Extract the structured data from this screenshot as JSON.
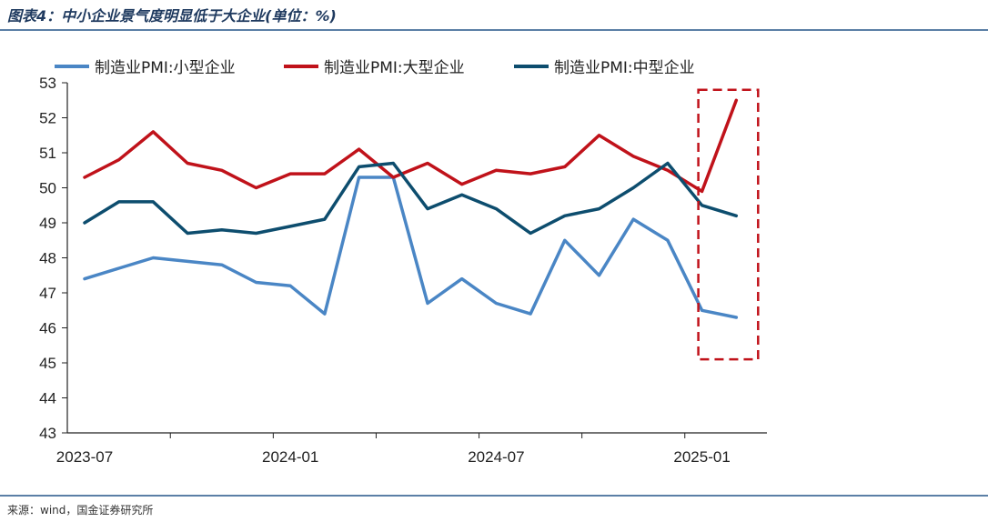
{
  "title": "图表4：中小企业景气度明显低于大企业(单位：%)",
  "source": "来源：wind，国金证券研究所",
  "chart_data": {
    "type": "line",
    "x": [
      "2023-07",
      "2023-08",
      "2023-09",
      "2023-10",
      "2023-11",
      "2023-12",
      "2024-01",
      "2024-02",
      "2024-03",
      "2024-04",
      "2024-05",
      "2024-06",
      "2024-07",
      "2024-08",
      "2024-09",
      "2024-10",
      "2024-11",
      "2024-12",
      "2025-01",
      "2025-02"
    ],
    "x_tick_labels": [
      "2023-07",
      "2024-01",
      "2024-07",
      "2025-01"
    ],
    "y_ticks": [
      43,
      44,
      45,
      46,
      47,
      48,
      49,
      50,
      51,
      52,
      53
    ],
    "ylim": [
      43,
      53
    ],
    "legend_position": "top",
    "grid": false,
    "series": [
      {
        "name": "制造业PMI:小型企业",
        "color": "#4a86c5",
        "values": [
          47.4,
          47.7,
          48.0,
          47.9,
          47.8,
          47.3,
          47.2,
          46.4,
          50.3,
          50.3,
          46.7,
          47.4,
          46.7,
          46.4,
          48.5,
          47.5,
          49.1,
          48.5,
          46.5,
          46.3
        ]
      },
      {
        "name": "制造业PMI:大型企业",
        "color": "#c0121a",
        "values": [
          50.3,
          50.8,
          51.6,
          50.7,
          50.5,
          50.0,
          50.4,
          50.4,
          51.1,
          50.3,
          50.7,
          50.1,
          50.5,
          50.4,
          50.6,
          51.5,
          50.9,
          50.5,
          49.9,
          52.5
        ]
      },
      {
        "name": "制造业PMI:中型企业",
        "color": "#0d4d6e",
        "values": [
          49.0,
          49.6,
          49.6,
          48.7,
          48.8,
          48.7,
          48.9,
          49.1,
          50.6,
          50.7,
          49.4,
          49.8,
          49.4,
          48.7,
          49.2,
          49.4,
          50.0,
          50.7,
          49.5,
          49.2
        ]
      }
    ],
    "annotation": {
      "type": "dashed-box",
      "color": "#c0121a",
      "covers_x": [
        "2025-01",
        "2025-02"
      ],
      "y_range": [
        45.1,
        52.8
      ]
    }
  }
}
